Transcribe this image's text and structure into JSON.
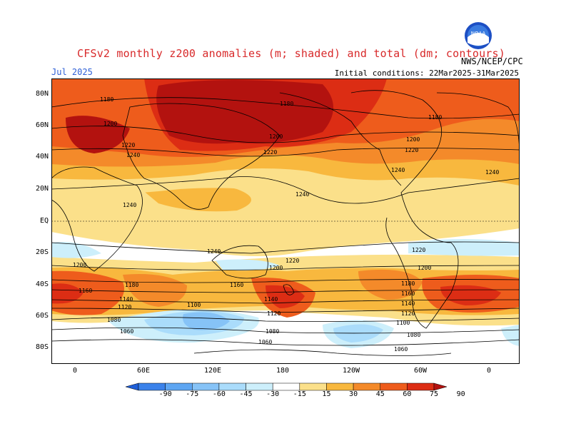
{
  "header": {
    "title": "CFSv2 monthly z200 anomalies (m; shaded) and total (dm; contours)",
    "month": "Jul 2025",
    "initial_conditions": "Initial conditions: 22Mar2025-31Mar2025",
    "agency": "NWS/NCEP/CPC",
    "logo_text": "NOAA"
  },
  "axes": {
    "lat_labels": [
      "80N",
      "60N",
      "40N",
      "20N",
      "EQ",
      "20S",
      "40S",
      "60S",
      "80S"
    ],
    "lon_labels": [
      "0",
      "60E",
      "120E",
      "180",
      "120W",
      "60W",
      "0"
    ]
  },
  "colorbar": {
    "labels": [
      "-90",
      "-75",
      "-60",
      "-45",
      "-30",
      "-15",
      "15",
      "30",
      "45",
      "60",
      "75",
      "90"
    ],
    "colors": [
      "#1f5fd8",
      "#3b82ea",
      "#5ea6f2",
      "#86c3f7",
      "#aadcfb",
      "#cdeffb",
      "#ffffff",
      "#fbe08a",
      "#f8b83e",
      "#f48a2a",
      "#ee5c1c",
      "#dc2d14",
      "#b3120f"
    ]
  },
  "contour_labels": [
    "1180",
    "1200",
    "1220",
    "1240",
    "1160",
    "1140",
    "1120",
    "1100",
    "1080",
    "1060"
  ]
}
